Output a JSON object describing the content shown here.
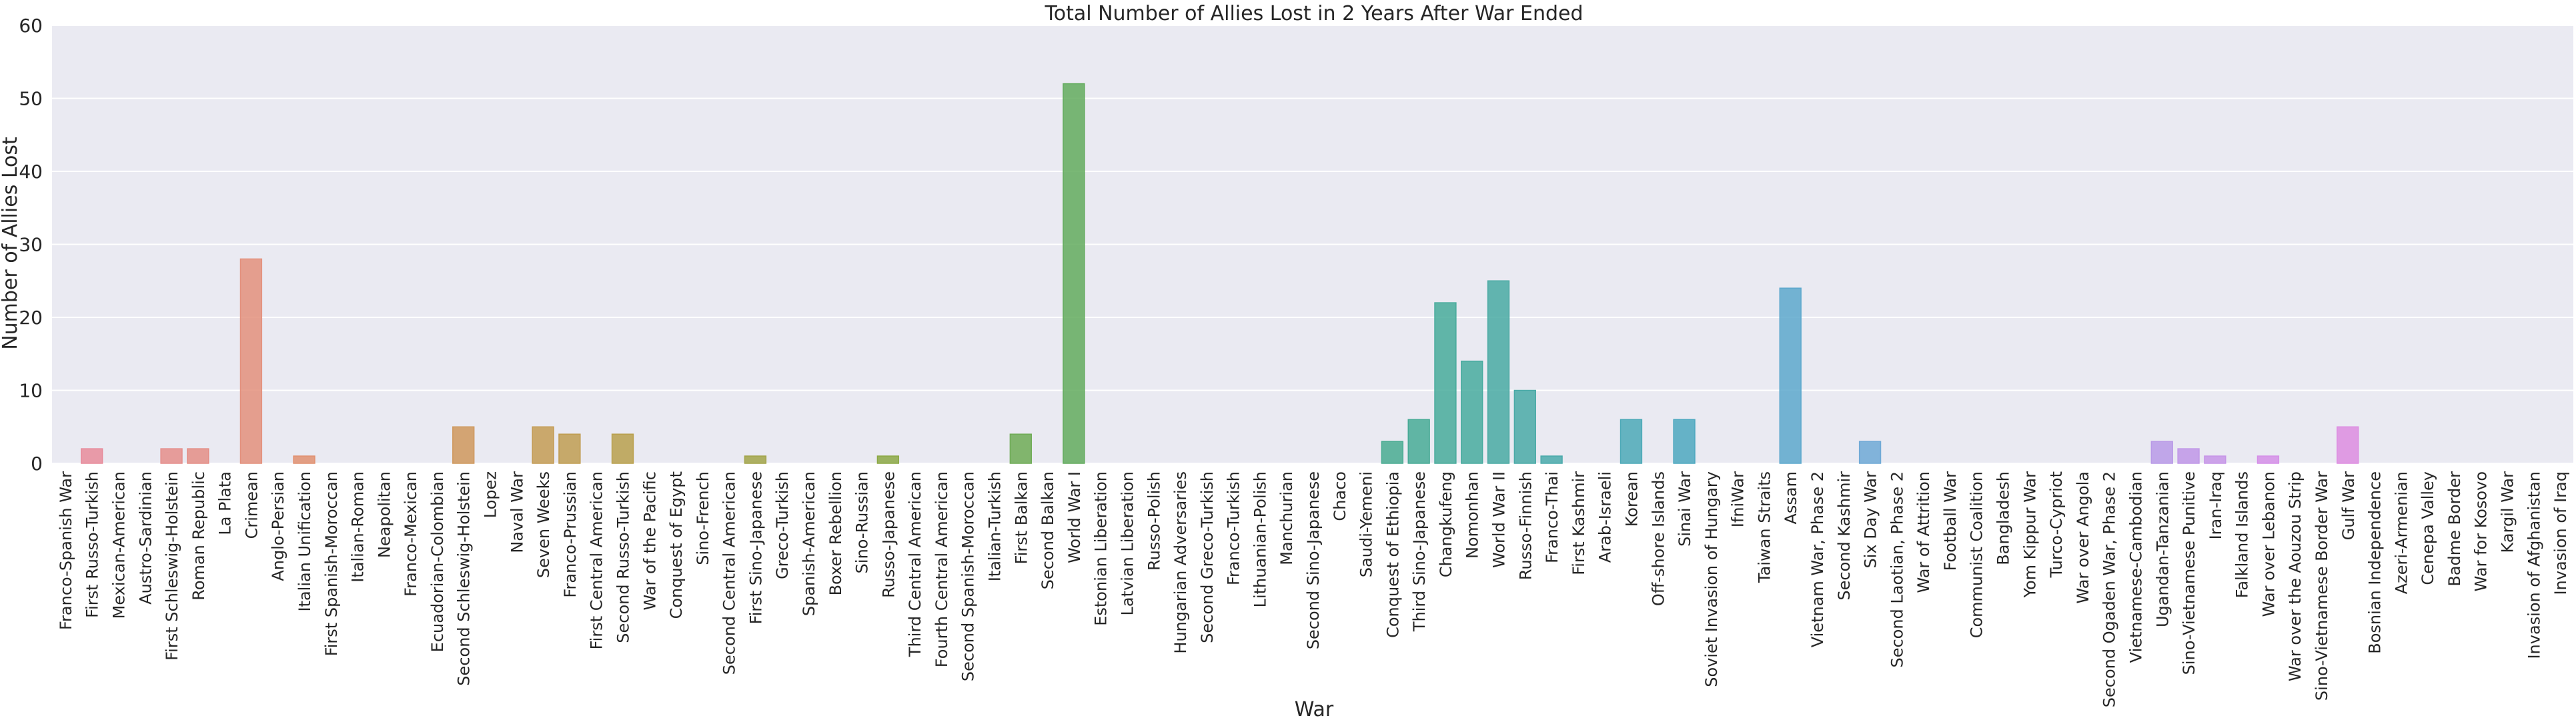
{
  "chart_data": {
    "type": "bar",
    "title": "Total Number of Allies Lost in 2 Years After War Ended",
    "xlabel": "War",
    "ylabel": "Number of Allies Lost",
    "ylim": [
      0,
      60
    ],
    "yticks": [
      0,
      10,
      20,
      30,
      40,
      50,
      60
    ],
    "grid": true,
    "categories": [
      "Franco-Spanish War",
      "First Russo-Turkish",
      "Mexican-American",
      "Austro-Sardinian",
      "First Schleswig-Holstein",
      "Roman Republic",
      "La Plata",
      "Crimean",
      "Anglo-Persian",
      "Italian Unification",
      "First Spanish-Moroccan",
      "Italian-Roman",
      "Neapolitan",
      "Franco-Mexican",
      "Ecuadorian-Colombian",
      "Second Schleswig-Holstein",
      "Lopez",
      "Naval War",
      "Seven Weeks",
      "Franco-Prussian",
      "First Central American",
      "Second Russo-Turkish",
      "War of the Pacific",
      "Conquest of Egypt",
      "Sino-French",
      "Second Central American",
      "First Sino-Japanese",
      "Greco-Turkish",
      "Spanish-American",
      "Boxer Rebellion",
      "Sino-Russian",
      "Russo-Japanese",
      "Third Central American",
      "Fourth Central American",
      "Second Spanish-Moroccan",
      "Italian-Turkish",
      "First Balkan",
      "Second Balkan",
      "World War I",
      "Estonian Liberation",
      "Latvian Liberation",
      "Russo-Polish",
      "Hungarian Adversaries",
      "Second Greco-Turkish",
      "Franco-Turkish",
      "Lithuanian-Polish",
      "Manchurian",
      "Second Sino-Japanese",
      "Chaco",
      "Saudi-Yemeni",
      "Conquest of Ethiopia",
      "Third Sino-Japanese",
      "Changkufeng",
      "Nomonhan",
      "World War II",
      "Russo-Finnish",
      "Franco-Thai",
      "First Kashmir",
      "Arab-Israeli",
      "Korean",
      "Off-shore Islands",
      "Sinai War",
      "Soviet Invasion of Hungary",
      "IfniWar",
      "Taiwan Straits",
      "Assam",
      "Vietnam War, Phase 2",
      "Second Kashmir",
      "Six Day War",
      "Second Laotian, Phase 2",
      "War of Attrition",
      "Football War",
      "Communist Coalition",
      "Bangladesh",
      "Yom Kippur War",
      "Turco-Cypriot",
      "War over Angola",
      "Second Ogaden War, Phase 2",
      "Vietnamese-Cambodian",
      "Ugandan-Tanzanian",
      "Sino-Vietnamese Punitive",
      "Iran-Iraq",
      "Falkland Islands",
      "War over Lebanon",
      "War over the Aouzou Strip",
      "Sino-Vietnamese Border War",
      "Gulf War",
      "Bosnian Independence",
      "Azeri-Armenian",
      "Cenepa Valley",
      "Badme Border",
      "War for Kosovo",
      "Kargil War",
      "Invasion of Afghanistan",
      "Invasion of Iraq"
    ],
    "values": [
      0,
      2,
      0,
      0,
      2,
      2,
      0,
      28,
      0,
      1,
      0,
      0,
      0,
      0,
      0,
      5,
      0,
      0,
      5,
      4,
      0,
      4,
      0,
      0,
      0,
      0,
      1,
      0,
      0,
      0,
      0,
      1,
      0,
      0,
      0,
      0,
      4,
      0,
      52,
      0,
      0,
      0,
      0,
      0,
      0,
      0,
      0,
      0,
      0,
      0,
      3,
      6,
      22,
      14,
      25,
      10,
      1,
      0,
      0,
      6,
      0,
      6,
      0,
      0,
      0,
      24,
      0,
      0,
      3,
      0,
      0,
      0,
      0,
      0,
      0,
      0,
      0,
      0,
      0,
      3,
      2,
      1,
      0,
      1,
      0,
      0,
      5,
      0,
      0,
      0,
      0,
      0,
      0,
      0,
      0
    ],
    "palette": [
      "#e88ba0",
      "#e0926a",
      "#b9a04d",
      "#8ba845",
      "#4cae6c",
      "#48ab9c",
      "#4ea8c6",
      "#8fa9e6",
      "#d98ee8",
      "#e888cb"
    ],
    "colors": {
      "background": "#eaeaf2",
      "grid": "#ffffff",
      "text": "#262626"
    }
  }
}
